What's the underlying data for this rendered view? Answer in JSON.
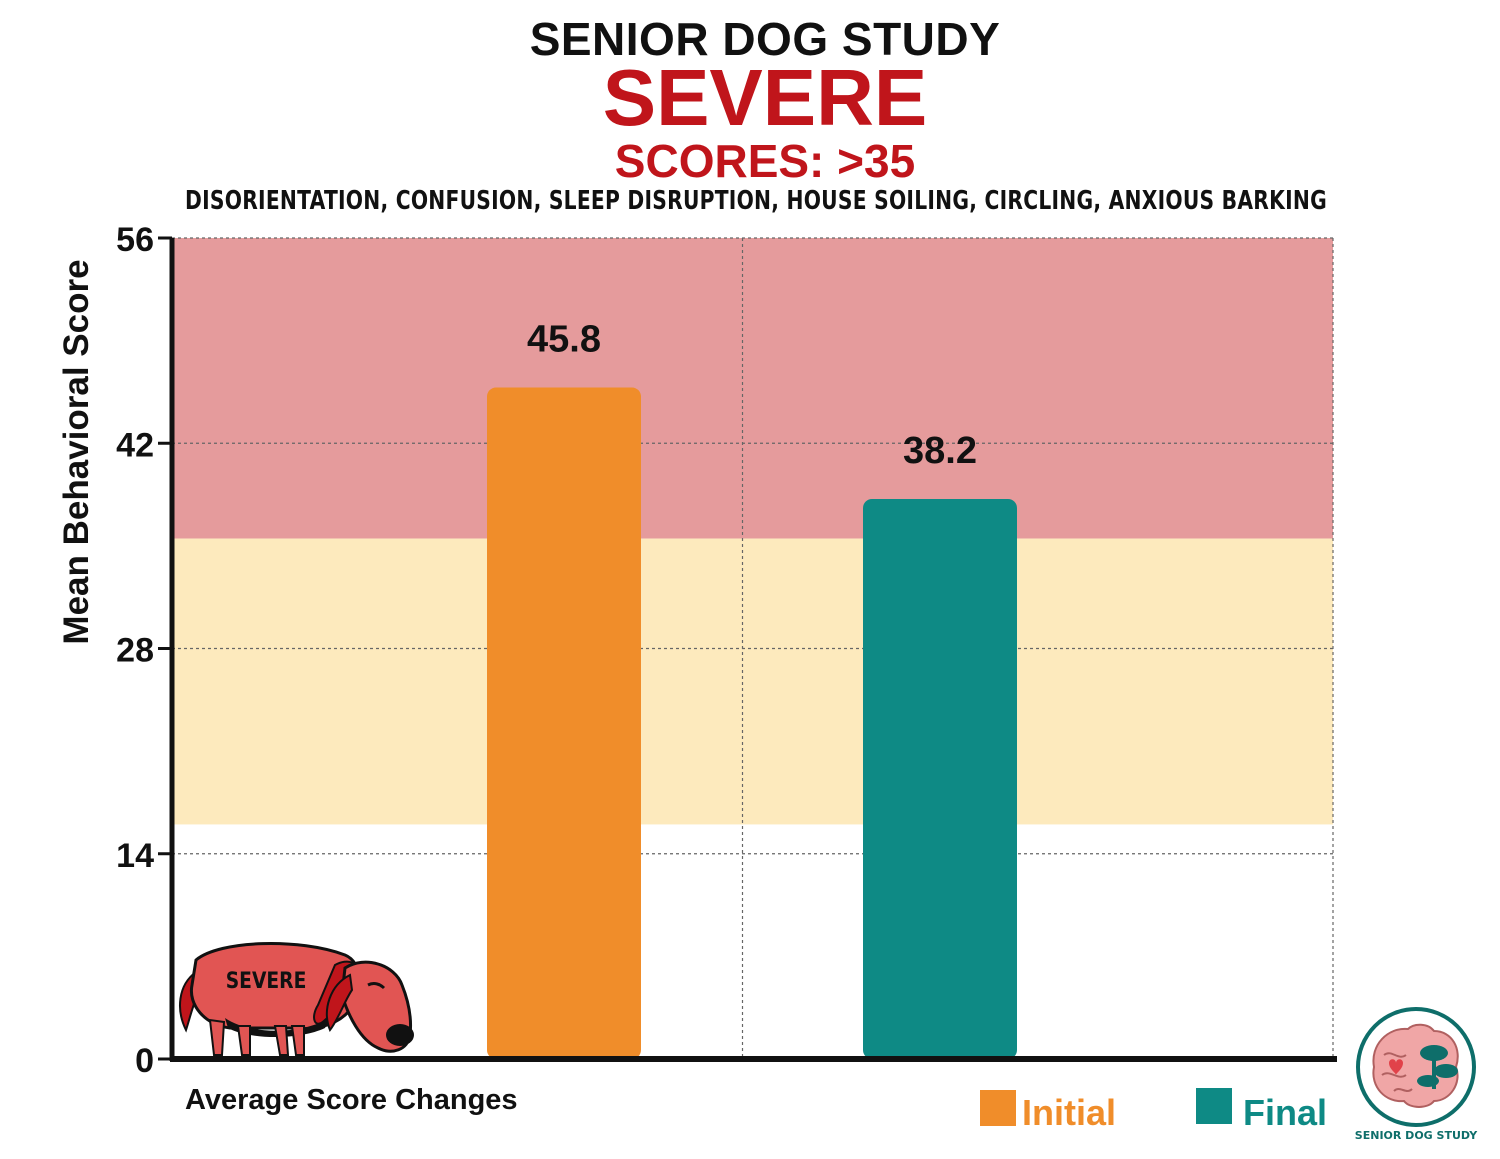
{
  "header": {
    "title": "SENIOR DOG STUDY",
    "category": "SEVERE",
    "score_range": "SCORES: >35",
    "symptoms": "DISORIENTATION, CONFUSION, SLEEP DISRUPTION, HOUSE SOILING, CIRCLING, ANXIOUS BARKING"
  },
  "illustration": {
    "dog_label": "SEVERE"
  },
  "logo": {
    "text": "SENIOR DOG STUDY"
  },
  "colors": {
    "title": "#111111",
    "accent": "#c0151b",
    "severe_band": "#e59b9c",
    "moderate_band": "#fdeabd",
    "initial": "#f08d2a",
    "final": "#0e8a85"
  },
  "chart_data": {
    "type": "bar",
    "ylabel": "Mean Behavioral Score",
    "xlabel": "Average Score Changes",
    "ylim": [
      0,
      56
    ],
    "yticks": [
      0,
      14,
      28,
      42,
      56
    ],
    "grid": true,
    "legend_position": "bottom-right",
    "series": [
      {
        "name": "Initial",
        "value": 45.8,
        "label": "45.8",
        "color": "#f08d2a"
      },
      {
        "name": "Final",
        "value": 38.2,
        "label": "38.2",
        "color": "#0e8a85"
      }
    ],
    "bands": [
      {
        "from": 35.5,
        "to": 56,
        "color": "#e59b9c"
      },
      {
        "from": 16,
        "to": 35.5,
        "color": "#fdeabd"
      }
    ]
  }
}
